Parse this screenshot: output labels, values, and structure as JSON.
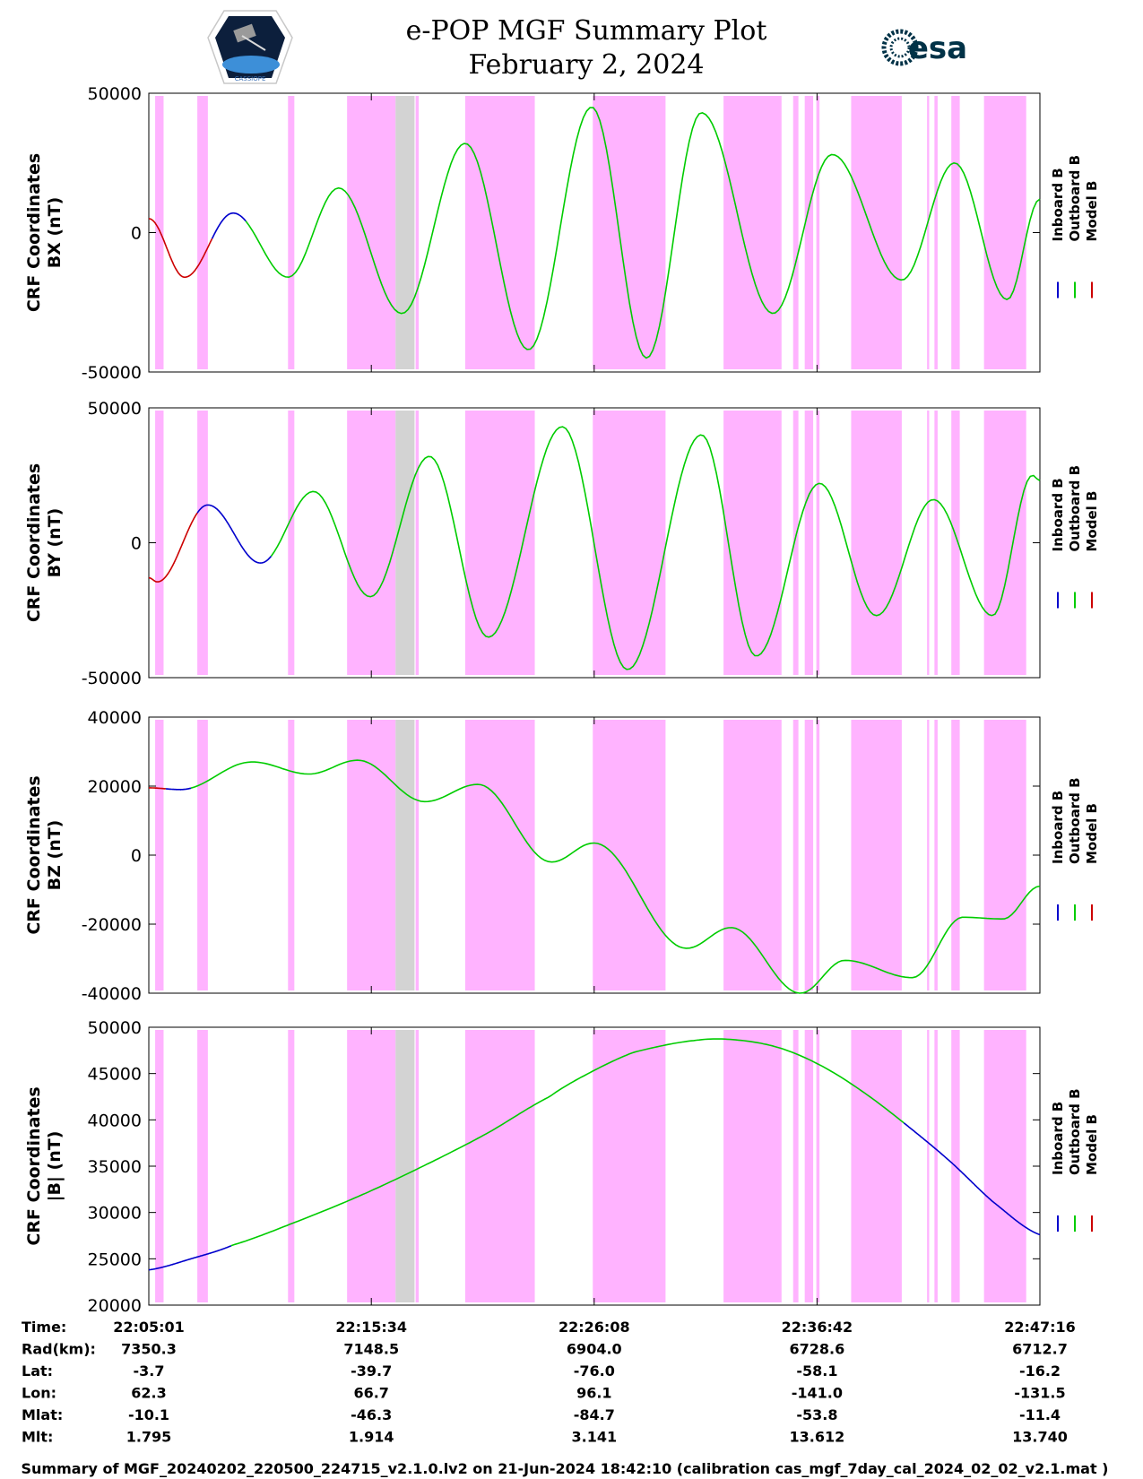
{
  "header": {
    "title_line1": "e-POP MGF Summary Plot",
    "title_line2": "February 2, 2024",
    "logo_left_text": "CASSIOPE",
    "logo_right_text": "esa"
  },
  "colors": {
    "inboard": "#0000cc",
    "outboard": "#00cc00",
    "model": "#cc0000",
    "shade_pink": "#ffb3ff",
    "shade_gray": "#d3d3d3"
  },
  "legend": {
    "labels": [
      "Inboard B",
      "Outboard B",
      "Model B"
    ]
  },
  "chart_data": {
    "type": "line",
    "x_unit": "minutes since 22:05:01",
    "x_range": [
      0,
      42.25
    ],
    "x_ticks": [
      0,
      10.55,
      21.117,
      31.683,
      42.25
    ],
    "shaded_regions_pink": [
      [
        0.3,
        0.7
      ],
      [
        2.3,
        2.8
      ],
      [
        6.6,
        6.9
      ],
      [
        9.4,
        11.7
      ],
      [
        12.35,
        12.45
      ],
      [
        12.65,
        12.8
      ],
      [
        15.0,
        18.3
      ],
      [
        21.05,
        24.5
      ],
      [
        27.25,
        30.0
      ],
      [
        30.55,
        30.8
      ],
      [
        31.1,
        31.5
      ],
      [
        31.65,
        31.8
      ],
      [
        33.3,
        35.7
      ],
      [
        36.9,
        37.0
      ],
      [
        37.25,
        37.4
      ],
      [
        38.05,
        38.45
      ],
      [
        39.6,
        41.6
      ]
    ],
    "shaded_regions_gray": [
      [
        11.7,
        12.6
      ]
    ],
    "panels": [
      {
        "ylabel_line1": "CRF Coordinates",
        "ylabel_line2": "BX (nT)",
        "ylim": [
          -50000,
          50000
        ],
        "yticks": [
          50000,
          0,
          -50000
        ],
        "ytick_labels": [
          "50000",
          "0",
          "-50000"
        ],
        "x": [
          0,
          1.7,
          4.0,
          6.6,
          9.0,
          12.0,
          15.0,
          18.0,
          21.0,
          23.6,
          26.2,
          29.6,
          32.4,
          35.7,
          38.2,
          40.7,
          42.25
        ],
        "y": [
          5000,
          -16000,
          7000,
          -16000,
          16000,
          -29000,
          32000,
          -42000,
          45000,
          -45000,
          43000,
          -29000,
          28000,
          -17000,
          25000,
          -24000,
          12000
        ],
        "segments": [
          {
            "series": "model",
            "x0": 0,
            "x1": 3.0
          },
          {
            "series": "inboard",
            "x0": 3.0,
            "x1": 4.6
          },
          {
            "series": "outboard",
            "x0": 4.6,
            "x1": 42.25
          }
        ]
      },
      {
        "ylabel_line1": "CRF Coordinates",
        "ylabel_line2": "BY (nT)",
        "ylim": [
          -50000,
          50000
        ],
        "yticks": [
          50000,
          0,
          -50000
        ],
        "ytick_labels": [
          "50000",
          "0",
          "-50000"
        ],
        "x": [
          0,
          0.4,
          2.8,
          5.3,
          7.8,
          10.5,
          13.3,
          16.1,
          19.6,
          22.7,
          26.2,
          28.8,
          31.8,
          34.5,
          37.2,
          40.0,
          41.9,
          42.25
        ],
        "y": [
          -13000,
          -14500,
          14000,
          -7500,
          19000,
          -20000,
          32000,
          -35000,
          43000,
          -47000,
          40000,
          -42000,
          22000,
          -27000,
          16000,
          -27000,
          25000,
          23000
        ],
        "segments": [
          {
            "series": "model",
            "x0": 0,
            "x1": 2.3
          },
          {
            "series": "inboard",
            "x0": 2.3,
            "x1": 5.8
          },
          {
            "series": "outboard",
            "x0": 5.8,
            "x1": 42.25
          }
        ]
      },
      {
        "ylabel_line1": "CRF Coordinates",
        "ylabel_line2": "BZ (nT)",
        "ylim": [
          -40000,
          40000
        ],
        "yticks": [
          40000,
          20000,
          0,
          -20000,
          -40000
        ],
        "ytick_labels": [
          "40000",
          "20000",
          "0",
          "-20000",
          "-40000"
        ],
        "x": [
          0,
          1.5,
          4.9,
          7.6,
          9.9,
          13.1,
          15.6,
          19.1,
          21.1,
          25.5,
          27.6,
          30.9,
          33.0,
          36.2,
          38.6,
          40.5,
          42.25
        ],
        "y": [
          19500,
          19000,
          27000,
          23500,
          27500,
          15500,
          20500,
          -2000,
          3500,
          -27000,
          -21000,
          -40000,
          -30500,
          -35500,
          -18000,
          -18500,
          -9000
        ],
        "segments": [
          {
            "series": "model",
            "x0": 0,
            "x1": 0.8
          },
          {
            "series": "inboard",
            "x0": 0.8,
            "x1": 2.0
          },
          {
            "series": "outboard",
            "x0": 2.0,
            "x1": 42.25
          }
        ]
      },
      {
        "ylabel_line1": "CRF Coordinates",
        "ylabel_line2": "|B| (nT)",
        "ylim": [
          20000,
          50000
        ],
        "yticks": [
          50000,
          45000,
          40000,
          35000,
          30000,
          25000,
          20000
        ],
        "ytick_labels": [
          "50000",
          "45000",
          "40000",
          "35000",
          "30000",
          "25000",
          "20000"
        ],
        "x": [
          0,
          2.0,
          4.0,
          7.0,
          10.0,
          13.0,
          16.0,
          19.0,
          21.0,
          23.0,
          26.0,
          28.0,
          30.0,
          32.0,
          34.0,
          36.0,
          38.0,
          40.0,
          42.25
        ],
        "y": [
          23800,
          25000,
          26500,
          29000,
          31800,
          35000,
          38500,
          42500,
          45200,
          47300,
          48600,
          48600,
          47700,
          45700,
          42800,
          39300,
          35500,
          31200,
          27600
        ],
        "segments": [
          {
            "series": "inboard",
            "x0": 0,
            "x1": 3.9
          },
          {
            "series": "outboard",
            "x0": 3.9,
            "x1": 35.8
          },
          {
            "series": "inboard",
            "x0": 35.8,
            "x1": 42.25
          }
        ]
      }
    ]
  },
  "ephemeris": {
    "rows": [
      {
        "label": "Time:",
        "values": [
          "22:05:01",
          "22:15:34",
          "22:26:08",
          "22:36:42",
          "22:47:16"
        ]
      },
      {
        "label": "Rad(km):",
        "values": [
          "7350.3",
          "7148.5",
          "6904.0",
          "6728.6",
          "6712.7"
        ]
      },
      {
        "label": "Lat:",
        "values": [
          "-3.7",
          "-39.7",
          "-76.0",
          "-58.1",
          "-16.2"
        ]
      },
      {
        "label": "Lon:",
        "values": [
          "62.3",
          "66.7",
          "96.1",
          "-141.0",
          "-131.5"
        ]
      },
      {
        "label": "Mlat:",
        "values": [
          "-10.1",
          "-46.3",
          "-84.7",
          "-53.8",
          "-11.4"
        ]
      },
      {
        "label": "Mlt:",
        "values": [
          "1.795",
          "1.914",
          "3.141",
          "13.612",
          "13.740"
        ]
      }
    ]
  },
  "footer": {
    "caption": "Summary of MGF_20240202_220500_224715_v2.1.0.lv2 on 21-Jun-2024 18:42:10 (calibration cas_mgf_7day_cal_2024_02_02_v2.1.mat )"
  }
}
